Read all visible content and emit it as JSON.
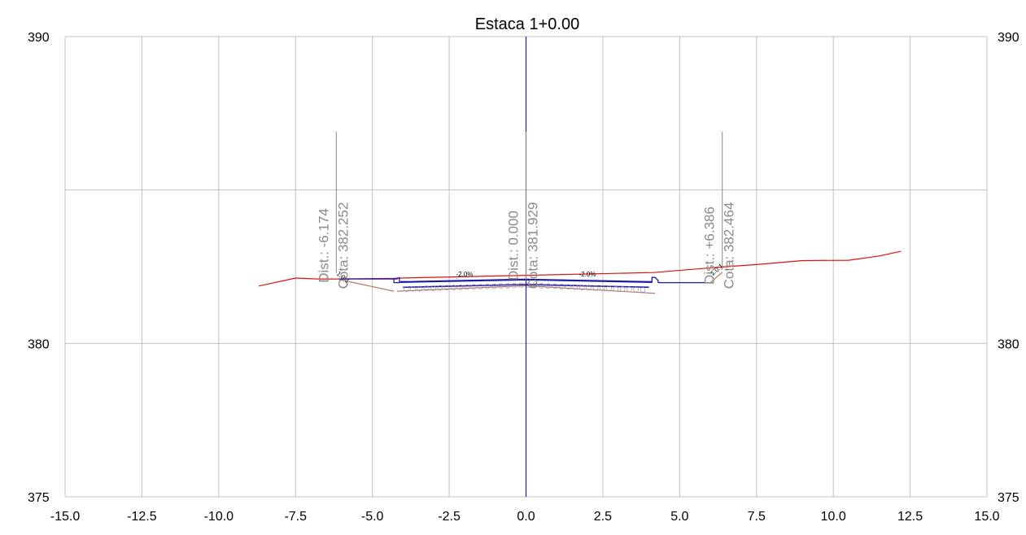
{
  "chart_data": {
    "type": "line",
    "title": "Estaca 1+0.00",
    "xlim": [
      -15.0,
      15.0
    ],
    "ylim": [
      375,
      390
    ],
    "x_ticks": [
      "-15.0",
      "-12.5",
      "-10.0",
      "-7.5",
      "-5.0",
      "-2.5",
      "0.0",
      "2.5",
      "5.0",
      "7.5",
      "10.0",
      "12.5",
      "15.0"
    ],
    "x_tick_values": [
      -15.0,
      -12.5,
      -10.0,
      -7.5,
      -5.0,
      -2.5,
      0.0,
      2.5,
      5.0,
      7.5,
      10.0,
      12.5,
      15.0
    ],
    "y_ticks_left": [
      "390",
      "380",
      "375"
    ],
    "y_ticks_right": [
      "390",
      "380",
      "375"
    ],
    "y_tick_values": [
      390,
      380,
      375
    ],
    "grid_x": [
      -15.0,
      -12.5,
      -10.0,
      -7.5,
      -5.0,
      -2.5,
      0.0,
      2.5,
      5.0,
      7.5,
      10.0,
      12.5,
      15.0
    ],
    "grid_y": [
      375,
      380,
      385,
      390
    ],
    "grid": true,
    "centerline_x": 0.0,
    "colors": {
      "terrain": "#e01010",
      "pavement": "#1a1aa8",
      "subgrade": "#b07060",
      "centerline": "#2020a0",
      "grid": "#c0c0c0",
      "annotation": "#8a8a8a"
    },
    "series": [
      {
        "key": "terrain",
        "x": [
          -8.7,
          -7.5,
          -6.8,
          -6.17,
          -4.3,
          -4.1,
          4.15,
          6.2,
          7.5,
          9.0,
          10.5,
          11.5,
          12.2
        ],
        "y": [
          381.87,
          382.13,
          382.1,
          382.1,
          382.12,
          382.13,
          382.31,
          382.48,
          382.57,
          382.7,
          382.71,
          382.85,
          383.0
        ]
      },
      {
        "key": "pavement_top",
        "x": [
          -4.1,
          0.0,
          4.1
        ],
        "y": [
          382.0,
          382.08,
          382.0
        ]
      },
      {
        "key": "pavement_bottom",
        "x": [
          -4.0,
          0.0,
          4.0
        ],
        "y": [
          381.83,
          381.92,
          381.83
        ]
      },
      {
        "key": "left_curb",
        "x": [
          -4.3,
          -4.2,
          -4.12,
          -4.12,
          -4.3,
          -4.3,
          -6.17
        ],
        "y": [
          382.1,
          382.1,
          382.15,
          381.98,
          381.98,
          382.1,
          382.1
        ]
      },
      {
        "key": "right_curb",
        "x": [
          4.1,
          4.1,
          4.2,
          4.3,
          4.3,
          6.0
        ],
        "y": [
          381.98,
          382.15,
          382.15,
          382.05,
          381.98,
          381.98
        ]
      },
      {
        "key": "left_cut",
        "x": [
          -6.17,
          -4.3
        ],
        "y": [
          382.1,
          381.7
        ]
      },
      {
        "key": "right_fill",
        "x": [
          6.0,
          6.39
        ],
        "y": [
          381.98,
          382.32
        ]
      },
      {
        "key": "subgrade",
        "x": [
          -4.2,
          0.0,
          4.2
        ],
        "y": [
          381.7,
          381.88,
          381.63
        ]
      }
    ],
    "annotations": [
      {
        "x": -6.174,
        "dist": "Dist.: -6.174",
        "cota": "Cota: 382.252",
        "y_top": 386.9,
        "y_base": 382.3
      },
      {
        "x": 0.0,
        "dist": "Dist.: 0.000",
        "cota": "Cota: 381.929",
        "y_top": 386.9,
        "y_base": 382.08
      },
      {
        "x": 6.386,
        "dist": "Dist.: +6.386",
        "cota": "Cota: 382.464",
        "y_top": 386.9,
        "y_base": 382.4
      }
    ],
    "slope_labels": [
      {
        "text": "-2.0%",
        "x": -2.0,
        "y": 382.18
      },
      {
        "text": "-2.0%",
        "x": 2.0,
        "y": 382.18
      },
      {
        "text": "1.0:1",
        "x": -6.0,
        "y": 382.1
      },
      {
        "text": "1.0:1",
        "x": 6.25,
        "y": 382.35
      }
    ]
  }
}
